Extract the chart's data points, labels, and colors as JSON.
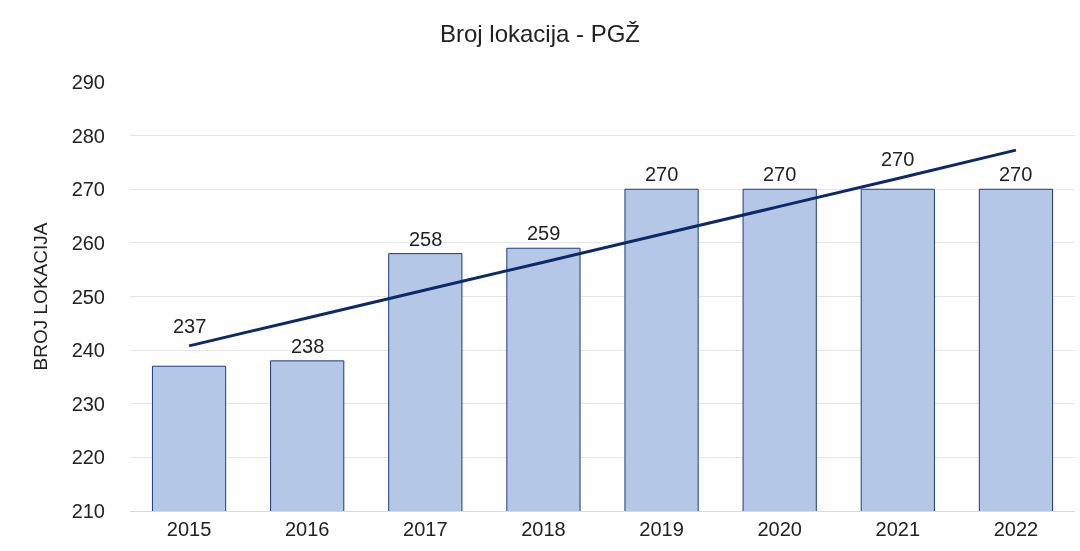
{
  "chart_data": {
    "type": "bar",
    "title": "Broj lokacija - PGŽ",
    "ylabel": "BROJ LOKACIJA",
    "categories": [
      "2015",
      "2016",
      "2017",
      "2018",
      "2019",
      "2020",
      "2021",
      "2022"
    ],
    "series": [
      {
        "color": "#b4c7e7",
        "values": [
          237,
          238,
          258,
          259,
          270,
          270,
          270,
          270
        ],
        "value_labels": [
          "237",
          "238",
          "258",
          "259",
          "270",
          "270",
          "270",
          "270"
        ]
      },
      {
        "type": "line",
        "color": "#0d2a66",
        "values": [
          240.8,
          246.0,
          251.2,
          256.4,
          261.6,
          266.8,
          272.0,
          277.3
        ]
      }
    ],
    "ylim": [
      210,
      290
    ],
    "yticks": [
      210,
      220,
      230,
      240,
      250,
      260,
      270,
      280,
      290
    ],
    "grid": "y",
    "legend": false
  }
}
